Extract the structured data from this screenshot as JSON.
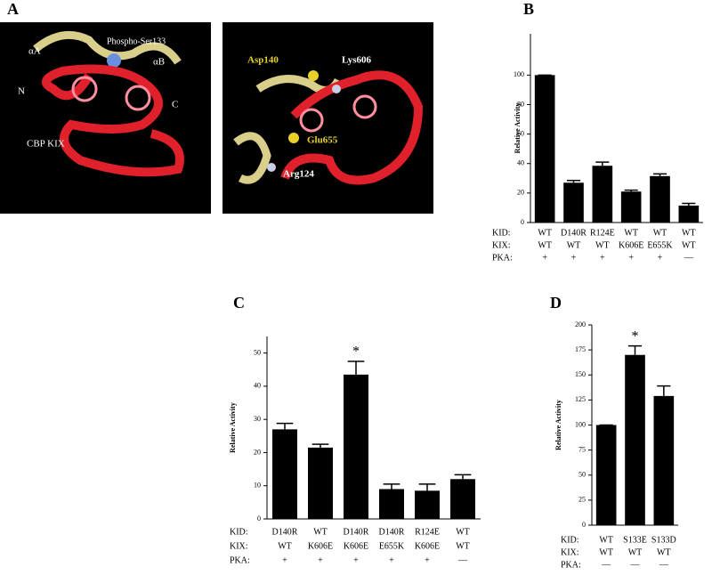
{
  "panel_a": {
    "label": "A",
    "left": {
      "alpha_a": "αA",
      "phospho": "Phospho-Ser133",
      "alpha_b": "αB",
      "n_term": "N",
      "c_term": "C",
      "kix": "CBP KIX"
    },
    "right": {
      "asp": "Asp140",
      "lys": "Lys606",
      "glu": "Glu655",
      "arg": "Arg124"
    }
  },
  "chart_data": [
    {
      "type": "bar",
      "panel_label": "B",
      "y_label": "Relative Activity",
      "color": "#000000",
      "values": [
        100,
        27,
        38.5,
        21,
        31.5,
        11.5
      ],
      "errors": [
        0,
        1.5,
        2.5,
        1,
        1.5,
        1.5
      ],
      "ylim": [
        0,
        128
      ],
      "yticks": [
        0,
        20,
        40,
        60,
        80,
        100
      ],
      "row_labels": [
        "KID:",
        "KIX:",
        "PKA:"
      ],
      "rows": [
        [
          "WT",
          "D140R",
          "R124E",
          "WT",
          "WT",
          "WT"
        ],
        [
          "WT",
          "WT",
          "WT",
          "K606E",
          "E655K",
          "WT"
        ],
        [
          "+",
          "+",
          "+",
          "+",
          "+",
          "—"
        ]
      ]
    },
    {
      "type": "bar",
      "panel_label": "C",
      "y_label": "Relative Activity",
      "color": "#000000",
      "values": [
        27,
        21.5,
        43.5,
        9,
        8.5,
        12
      ],
      "errors": [
        1.8,
        1,
        4,
        1.5,
        2,
        1.3
      ],
      "significance": [
        null,
        null,
        "*",
        null,
        null,
        null
      ],
      "ylim": [
        0,
        55
      ],
      "yticks": [
        0,
        10,
        20,
        30,
        40,
        50
      ],
      "row_labels": [
        "KID:",
        "KIX:",
        "PKA:"
      ],
      "rows": [
        [
          "D140R",
          "WT",
          "D140R",
          "D140R",
          "R124E",
          "WT"
        ],
        [
          "WT",
          "K606E",
          "K606E",
          "E655K",
          "K606E",
          "WT"
        ],
        [
          "+",
          "+",
          "+",
          "+",
          "+",
          "—"
        ]
      ]
    },
    {
      "type": "bar",
      "panel_label": "D",
      "y_label": "Relative Activity",
      "color": "#000000",
      "values": [
        100,
        170,
        129
      ],
      "errors": [
        0,
        9,
        10
      ],
      "significance": [
        null,
        "*",
        null
      ],
      "ylim": [
        0,
        200
      ],
      "yticks": [
        0,
        25,
        50,
        75,
        100,
        125,
        150,
        175,
        200
      ],
      "row_labels": [
        "KID:",
        "KIX:",
        "PKA:"
      ],
      "rows": [
        [
          "WT",
          "S133E",
          "S133D"
        ],
        [
          "WT",
          "WT",
          "WT"
        ],
        [
          "—",
          "—",
          "—"
        ]
      ]
    }
  ]
}
